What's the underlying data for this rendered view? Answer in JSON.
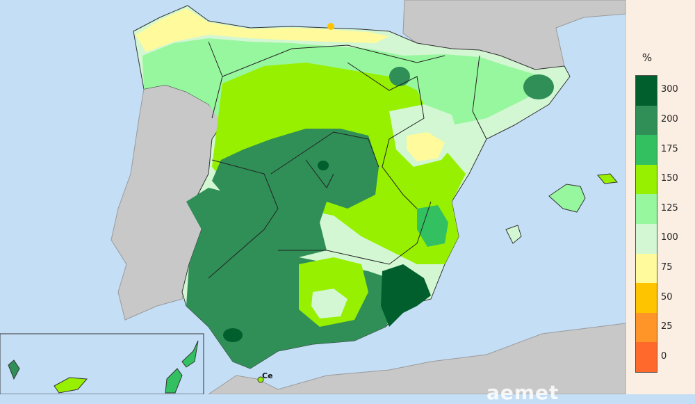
{
  "legend": {
    "unit": "%",
    "classes": [
      {
        "label": "300",
        "color": "#005f2d"
      },
      {
        "label": "200",
        "color": "#2f8f57"
      },
      {
        "label": "175",
        "color": "#33c060"
      },
      {
        "label": "150",
        "color": "#97f000"
      },
      {
        "label": "125",
        "color": "#97f79e"
      },
      {
        "label": "100",
        "color": "#d2f7d2"
      },
      {
        "label": "75",
        "color": "#fffa9b"
      },
      {
        "label": "50",
        "color": "#ffc400"
      },
      {
        "label": "25",
        "color": "#ff9428"
      },
      {
        "label": "0",
        "color": "#ff6a2c"
      }
    ]
  },
  "map_labels": {
    "ceuta": "Ce"
  },
  "brand": "aemet",
  "colors": {
    "sea": "#c4def6",
    "foreign_land": "#c8c8c8",
    "panel": "#fbeee2"
  }
}
